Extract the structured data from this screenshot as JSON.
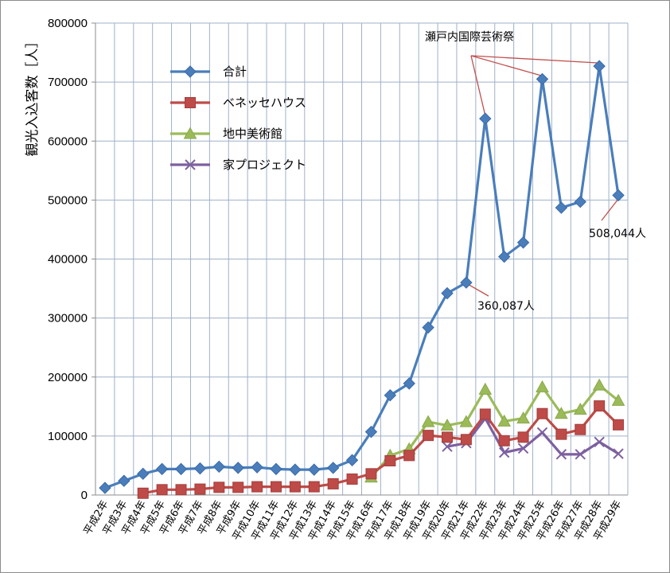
{
  "chart_data": {
    "type": "line",
    "ylabel": "観光入込客数［人］",
    "ylim": [
      0,
      800000
    ],
    "yticks": [
      0,
      100000,
      200000,
      300000,
      400000,
      500000,
      600000,
      700000,
      800000
    ],
    "grid": true,
    "legend_position": "top-left",
    "categories": [
      "平成2年",
      "平成3年",
      "平成4年",
      "平成5年",
      "平成6年",
      "平成7年",
      "平成8年",
      "平成9年",
      "平成10年",
      "平成11年",
      "平成12年",
      "平成13年",
      "平成14年",
      "平成15年",
      "平成16年",
      "平成17年",
      "平成18年",
      "平成19年",
      "平成20年",
      "平成21年",
      "平成22年",
      "平成23年",
      "平成24年",
      "平成25年",
      "平成26年",
      "平成27年",
      "平成28年",
      "平成29年"
    ],
    "series": [
      {
        "name": "合計",
        "color": "#4a7ebb",
        "marker": "diamond",
        "values": [
          12000,
          24000,
          36000,
          44000,
          44000,
          45000,
          48000,
          46000,
          47000,
          44000,
          43000,
          43000,
          46000,
          59000,
          107000,
          169000,
          189000,
          284000,
          342000,
          360087,
          638000,
          404000,
          428000,
          705000,
          487000,
          497000,
          727000,
          508044
        ]
      },
      {
        "name": "ベネッセハウス",
        "color": "#be4b48",
        "marker": "square",
        "values": [
          null,
          null,
          3000,
          9000,
          9000,
          10000,
          13000,
          13000,
          14000,
          14000,
          14000,
          14000,
          19000,
          27000,
          36000,
          58000,
          67000,
          101000,
          98000,
          94000,
          137000,
          92000,
          98000,
          138000,
          103000,
          111000,
          151000,
          119000
        ]
      },
      {
        "name": "地中美術館",
        "color": "#9bbb59",
        "marker": "triangle",
        "values": [
          null,
          null,
          null,
          null,
          null,
          null,
          null,
          null,
          null,
          null,
          null,
          null,
          null,
          null,
          30000,
          67000,
          78000,
          124000,
          118000,
          124000,
          179000,
          125000,
          130000,
          183000,
          138000,
          145000,
          186000,
          160000
        ]
      },
      {
        "name": "家プロジェクト",
        "color": "#7d60a0",
        "marker": "x",
        "values": [
          null,
          null,
          null,
          null,
          null,
          null,
          null,
          null,
          null,
          null,
          null,
          null,
          null,
          null,
          null,
          null,
          null,
          null,
          82000,
          88000,
          130000,
          72000,
          79000,
          106000,
          69000,
          69000,
          90000,
          70000
        ]
      }
    ],
    "annotations": [
      {
        "label": "瀬戸内国際芸術祭",
        "targets": [
          20,
          23,
          26
        ]
      },
      {
        "label": "360,087人",
        "target_series": 0,
        "target_index": 19
      },
      {
        "label": "508,044人",
        "target_series": 0,
        "target_index": 27
      }
    ]
  }
}
